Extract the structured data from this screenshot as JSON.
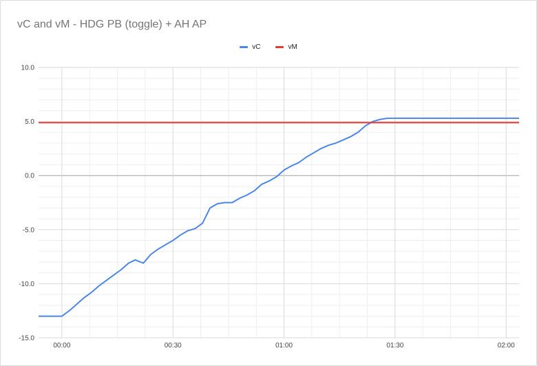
{
  "chart_data": {
    "type": "line",
    "title": "vC and vM - HDG PB (toggle) + AH AP",
    "xlabel": "",
    "ylabel": "",
    "x_ticks": [
      "00:00",
      "00:30",
      "01:00",
      "01:30",
      "02:00"
    ],
    "x_tick_minutes": [
      0,
      30,
      60,
      90,
      120
    ],
    "y_ticks": [
      "10.0",
      "5.0",
      "0.0",
      "-5.0",
      "-10.0",
      "-15.0"
    ],
    "y_tick_values": [
      10,
      5,
      0,
      -5,
      -10,
      -15
    ],
    "xlim_minutes": [
      -6.3,
      123.5
    ],
    "ylim": [
      -15,
      10
    ],
    "grid": true,
    "legend_position": "top",
    "series": [
      {
        "name": "vC",
        "color": "#4a86e8",
        "x_minutes": [
          -6.3,
          0,
          2,
          4,
          6,
          8,
          10,
          12,
          14,
          16,
          18,
          19.8,
          22,
          24,
          26,
          28,
          30,
          32,
          34,
          36,
          38,
          40,
          42,
          44,
          46,
          48,
          50,
          52,
          54,
          56,
          58,
          60,
          62,
          64,
          66,
          68,
          70,
          72,
          74,
          76,
          78,
          80,
          82,
          84,
          86,
          88,
          90,
          92,
          94,
          96,
          98,
          100,
          102,
          104,
          106,
          108,
          110,
          112,
          114,
          116,
          118,
          120,
          122,
          123.5
        ],
        "values": [
          -13.0,
          -13.0,
          -12.5,
          -11.9,
          -11.3,
          -10.8,
          -10.2,
          -9.7,
          -9.2,
          -8.7,
          -8.1,
          -7.8,
          -8.1,
          -7.3,
          -6.8,
          -6.4,
          -6.0,
          -5.5,
          -5.1,
          -4.9,
          -4.4,
          -3.0,
          -2.6,
          -2.5,
          -2.5,
          -2.1,
          -1.8,
          -1.4,
          -0.8,
          -0.5,
          -0.1,
          0.5,
          0.9,
          1.2,
          1.7,
          2.1,
          2.5,
          2.8,
          3.0,
          3.3,
          3.6,
          4.0,
          4.6,
          5.0,
          5.2,
          5.3,
          5.3,
          5.3,
          5.3,
          5.3,
          5.3,
          5.3,
          5.3,
          5.3,
          5.3,
          5.3,
          5.3,
          5.3,
          5.3,
          5.3,
          5.3,
          5.3,
          5.3,
          5.3
        ]
      },
      {
        "name": "vM",
        "color": "#e53935",
        "x_minutes": [
          -6.3,
          123.5
        ],
        "values": [
          4.9,
          4.9
        ]
      }
    ]
  }
}
